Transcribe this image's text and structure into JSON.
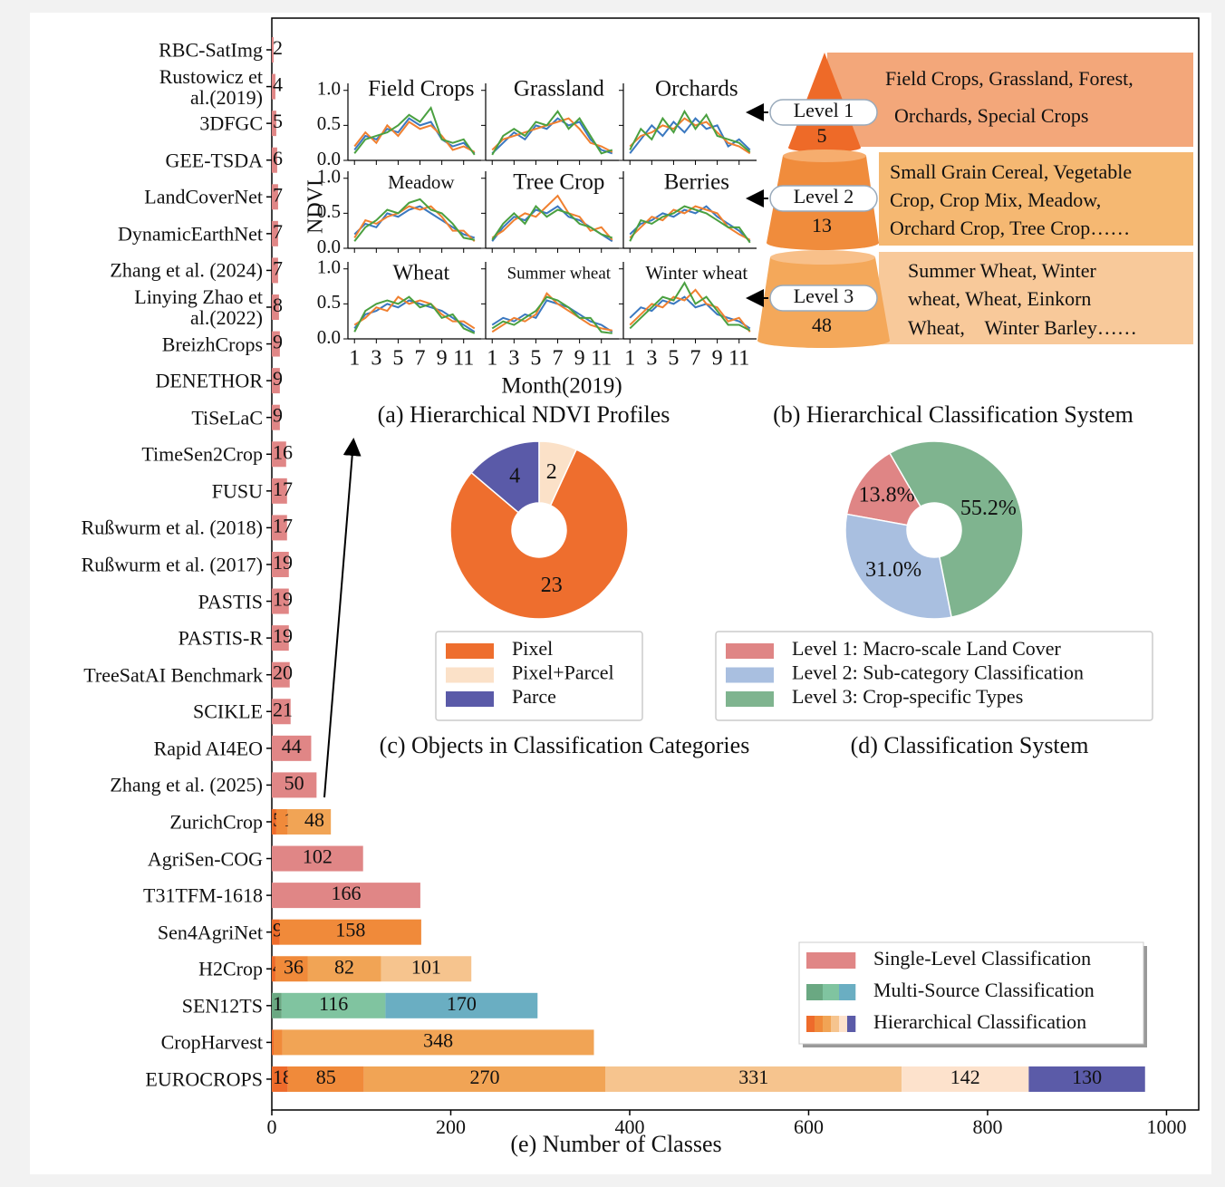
{
  "chart_data": [
    {
      "type": "bar",
      "orientation": "horizontal",
      "categories": [
        "RBC-SatImg",
        "Rustowicz et\nal.(2019)",
        "3DFGC",
        "GEE-TSDA",
        "LandCoverNet",
        "DynamicEarthNet",
        "Zhang et al. (2024)",
        "Linying Zhao et\nal.(2022)",
        "BreizhCrops",
        "DENETHOR",
        "TiSeLaC",
        "TimeSen2Crop",
        "FUSU",
        "Rußwurm et al. (2018)",
        "Rußwurm et al. (2017)",
        "PASTIS",
        "PASTIS-R",
        "TreeSatAI Benchmark",
        "SCIKLE",
        "Rapid AI4EO",
        "Zhang et al. (2025)",
        "ZurichCrop",
        "AgriSen-COG",
        "T31TFM-1618",
        "Sen4AgriNet",
        "H2Crop",
        "SEN12TS",
        "CropHarvest",
        "EUROCROPS"
      ],
      "values": [
        [
          2
        ],
        [
          4
        ],
        [
          5
        ],
        [
          6
        ],
        [
          7
        ],
        [
          7
        ],
        [
          7
        ],
        [
          8
        ],
        [
          9
        ],
        [
          9
        ],
        [
          9
        ],
        [
          16
        ],
        [
          17
        ],
        [
          17
        ],
        [
          19
        ],
        [
          19
        ],
        [
          19
        ],
        [
          20
        ],
        [
          21
        ],
        [
          44
        ],
        [
          50
        ],
        [
          5,
          13,
          48
        ],
        [
          102
        ],
        [
          166
        ],
        [
          9,
          158
        ],
        [
          4,
          36,
          82,
          101
        ],
        [
          11,
          116,
          170
        ],
        [
          2,
          10,
          348
        ],
        [
          18,
          85,
          270,
          331,
          142,
          130
        ]
      ],
      "colors": [
        [
          "#e08686"
        ],
        [
          "#e08686"
        ],
        [
          "#e08686"
        ],
        [
          "#e08686"
        ],
        [
          "#e08686"
        ],
        [
          "#e08686"
        ],
        [
          "#e08686"
        ],
        [
          "#e08686"
        ],
        [
          "#e08686"
        ],
        [
          "#e08686"
        ],
        [
          "#e08686"
        ],
        [
          "#e08686"
        ],
        [
          "#e08686"
        ],
        [
          "#e08686"
        ],
        [
          "#e08686"
        ],
        [
          "#e08686"
        ],
        [
          "#e08686"
        ],
        [
          "#e08686"
        ],
        [
          "#e08686"
        ],
        [
          "#e08686"
        ],
        [
          "#e08686"
        ],
        [
          "#ee6b2b",
          "#f08a3a",
          "#f1a455"
        ],
        [
          "#e08686"
        ],
        [
          "#e08686"
        ],
        [
          "#ee6b2b",
          "#f08a3a"
        ],
        [
          "#ee6b2b",
          "#f08a3a",
          "#f1a455",
          "#f6c48e"
        ],
        [
          "#6aa882",
          "#80c4a0",
          "#6aaec2"
        ],
        [
          "#ee6b2b",
          "#f08a3a",
          "#f1a455"
        ],
        [
          "#ee6b2b",
          "#f08a3a",
          "#f1a455",
          "#f6c48e",
          "#fde2cc",
          "#5b5ba8"
        ]
      ],
      "xlim": [
        0,
        1036
      ],
      "xticks": [
        0,
        200,
        400,
        600,
        800,
        1000
      ],
      "xlabel": "(e) Number of Classes",
      "legend": [
        "Single-Level Classification",
        "Multi-Source Classification",
        "Hierarchical Classification"
      ],
      "legend_colors": [
        [
          "#e08686"
        ],
        [
          "#6aa882",
          "#80c4a0",
          "#6aaec2"
        ],
        [
          "#ee6b2b",
          "#f08a3a",
          "#f1a455",
          "#f6c48e",
          "#fde2cc",
          "#5b5ba8"
        ]
      ],
      "legend_position": "lower right"
    },
    {
      "type": "line",
      "x": [
        1,
        2,
        3,
        4,
        5,
        6,
        7,
        8,
        9,
        10,
        11,
        12
      ],
      "xlim": [
        0.4,
        12.6
      ],
      "xticks": [
        1,
        3,
        5,
        7,
        9,
        11
      ],
      "ylim": [
        0,
        1.1
      ],
      "yticks": [
        {
          "value": 0,
          "label": "0.0"
        },
        0.5,
        {
          "value": 1,
          "label": "1.0"
        }
      ],
      "ylabel": "NDVI",
      "xlabel": "Month(2019)",
      "caption": "(a) Hierarchical NDVI Profiles",
      "colors": [
        "#3a78c0",
        "#f08030",
        "#4aa040"
      ],
      "panels": [
        {
          "title": "Field Crops",
          "series": [
            [
              0.15,
              0.35,
              0.3,
              0.45,
              0.4,
              0.6,
              0.5,
              0.55,
              0.3,
              0.2,
              0.25,
              0.1
            ],
            [
              0.2,
              0.4,
              0.25,
              0.5,
              0.35,
              0.55,
              0.45,
              0.5,
              0.35,
              0.15,
              0.2,
              0.12
            ],
            [
              0.1,
              0.3,
              0.35,
              0.4,
              0.5,
              0.65,
              0.55,
              0.75,
              0.3,
              0.25,
              0.3,
              0.08
            ]
          ]
        },
        {
          "title": "Grassland",
          "series": [
            [
              0.1,
              0.25,
              0.4,
              0.3,
              0.5,
              0.45,
              0.6,
              0.5,
              0.55,
              0.3,
              0.15,
              0.1
            ],
            [
              0.15,
              0.3,
              0.35,
              0.4,
              0.45,
              0.5,
              0.55,
              0.6,
              0.45,
              0.25,
              0.2,
              0.12
            ],
            [
              0.08,
              0.35,
              0.45,
              0.35,
              0.55,
              0.5,
              0.7,
              0.45,
              0.6,
              0.35,
              0.1,
              0.15
            ]
          ]
        },
        {
          "title": "Orchards",
          "series": [
            [
              0.1,
              0.3,
              0.5,
              0.35,
              0.55,
              0.4,
              0.6,
              0.45,
              0.5,
              0.2,
              0.3,
              0.15
            ],
            [
              0.2,
              0.35,
              0.4,
              0.5,
              0.45,
              0.6,
              0.5,
              0.55,
              0.4,
              0.25,
              0.2,
              0.1
            ],
            [
              0.15,
              0.45,
              0.3,
              0.6,
              0.4,
              0.7,
              0.45,
              0.65,
              0.35,
              0.3,
              0.25,
              0.12
            ]
          ]
        },
        {
          "title": "Meadow",
          "series": [
            [
              0.2,
              0.35,
              0.3,
              0.5,
              0.45,
              0.55,
              0.6,
              0.5,
              0.4,
              0.3,
              0.2,
              0.15
            ],
            [
              0.15,
              0.4,
              0.35,
              0.45,
              0.5,
              0.6,
              0.55,
              0.6,
              0.45,
              0.25,
              0.25,
              0.1
            ],
            [
              0.1,
              0.3,
              0.4,
              0.55,
              0.5,
              0.65,
              0.7,
              0.55,
              0.5,
              0.35,
              0.15,
              0.12
            ]
          ]
        },
        {
          "title": "Tree Crop",
          "series": [
            [
              0.1,
              0.3,
              0.45,
              0.4,
              0.55,
              0.5,
              0.6,
              0.45,
              0.4,
              0.3,
              0.2,
              0.1
            ],
            [
              0.15,
              0.25,
              0.4,
              0.5,
              0.45,
              0.6,
              0.75,
              0.5,
              0.45,
              0.25,
              0.3,
              0.12
            ],
            [
              0.12,
              0.35,
              0.5,
              0.35,
              0.6,
              0.45,
              0.55,
              0.5,
              0.35,
              0.3,
              0.2,
              0.15
            ]
          ]
        },
        {
          "title": "Berries",
          "series": [
            [
              0.2,
              0.35,
              0.4,
              0.5,
              0.45,
              0.55,
              0.5,
              0.6,
              0.45,
              0.35,
              0.25,
              0.1
            ],
            [
              0.15,
              0.3,
              0.45,
              0.4,
              0.55,
              0.5,
              0.6,
              0.55,
              0.5,
              0.3,
              0.2,
              0.12
            ],
            [
              0.1,
              0.4,
              0.35,
              0.45,
              0.5,
              0.6,
              0.55,
              0.5,
              0.4,
              0.3,
              0.3,
              0.08
            ]
          ]
        },
        {
          "title": "Wheat",
          "series": [
            [
              0.15,
              0.35,
              0.4,
              0.5,
              0.45,
              0.55,
              0.5,
              0.45,
              0.4,
              0.3,
              0.2,
              0.1
            ],
            [
              0.2,
              0.3,
              0.45,
              0.4,
              0.6,
              0.5,
              0.55,
              0.5,
              0.35,
              0.25,
              0.25,
              0.15
            ],
            [
              0.1,
              0.4,
              0.5,
              0.55,
              0.5,
              0.6,
              0.45,
              0.5,
              0.3,
              0.35,
              0.15,
              0.08
            ]
          ]
        },
        {
          "title": "Summer wheat",
          "series": [
            [
              0.2,
              0.3,
              0.25,
              0.35,
              0.3,
              0.55,
              0.5,
              0.45,
              0.35,
              0.25,
              0.2,
              0.1
            ],
            [
              0.1,
              0.2,
              0.3,
              0.25,
              0.35,
              0.65,
              0.5,
              0.4,
              0.3,
              0.2,
              0.15,
              0.12
            ],
            [
              0.15,
              0.25,
              0.2,
              0.3,
              0.4,
              0.6,
              0.55,
              0.45,
              0.3,
              0.3,
              0.1,
              0.08
            ]
          ]
        },
        {
          "title": "Winter wheat",
          "series": [
            [
              0.3,
              0.45,
              0.4,
              0.55,
              0.5,
              0.6,
              0.45,
              0.5,
              0.35,
              0.3,
              0.25,
              0.15
            ],
            [
              0.2,
              0.35,
              0.5,
              0.45,
              0.6,
              0.55,
              0.7,
              0.5,
              0.45,
              0.25,
              0.3,
              0.1
            ],
            [
              0.15,
              0.3,
              0.45,
              0.6,
              0.55,
              0.8,
              0.5,
              0.6,
              0.4,
              0.2,
              0.2,
              0.12
            ]
          ]
        }
      ]
    },
    {
      "type": "pie",
      "categories": [
        "Pixel",
        "Pixel+Parcel",
        "Parce"
      ],
      "values": [
        23,
        2,
        4
      ],
      "colors": [
        "#ee6e2e",
        "#fbe1c8",
        "#5a5aa8"
      ],
      "caption": "(c) Objects in Classification Categories"
    },
    {
      "type": "pie",
      "categories": [
        "Level 1: Macro-scale Land Cover",
        "Level 2: Sub-category Classification",
        "Level 3: Crop-specific Types"
      ],
      "values": [
        13.8,
        31.0,
        55.2
      ],
      "value_labels": [
        "13.8%",
        "31.0%",
        "55.2%"
      ],
      "colors": [
        "#df8585",
        "#a9bfe0",
        "#7fb48f"
      ],
      "caption": "(d) Classification System"
    }
  ],
  "hierarchy": {
    "caption": "(b) Hierarchical Classification System",
    "levels": [
      {
        "label": "Level 1",
        "count": 5,
        "description": [
          "Field Crops, Grassland, Forest,",
          "Orchards,  Special Crops"
        ]
      },
      {
        "label": "Level 2",
        "count": 13,
        "description": [
          "Small Grain Cereal, Vegetable",
          "Crop, Crop Mix, Meadow,",
          "Orchard Crop, Tree Crop……"
        ]
      },
      {
        "label": "Level 3",
        "count": 48,
        "description": [
          "Summer Wheat, Winter",
          "wheat, Wheat, Einkorn",
          "Wheat,    Winter Barley……"
        ]
      }
    ]
  }
}
